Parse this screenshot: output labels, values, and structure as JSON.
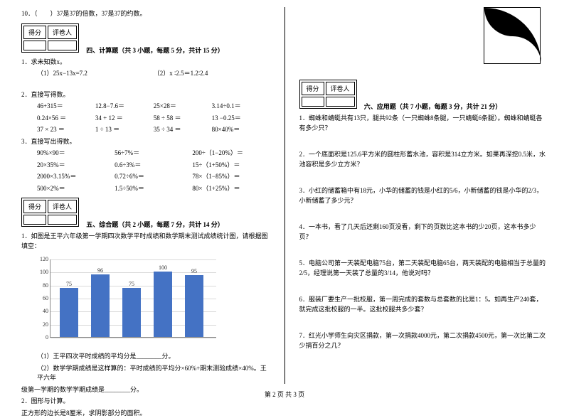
{
  "q10": "10．（　　）37是37的倍数，37是37的约数。",
  "scorebox": {
    "c1": "得分",
    "c2": "评卷人"
  },
  "sec4": {
    "title": "四、计算题（共 3 小题，每题 5 分，共计 15 分）",
    "q1": "1．求未知数x。",
    "q1a": "（1）25x−13x=7.2",
    "q1b": "（2）x ∶2.5＝1.2∶2.4",
    "q2": "2．直接写得数。",
    "r1": [
      "46+315＝",
      "12.8−7.6＝",
      "25×28＝",
      "3.14÷0.1＝"
    ],
    "r2": [
      "0.24×56  ＝",
      "34 + 12  ＝",
      "58 ÷ 58  ＝",
      "13 −0.25＝"
    ],
    "r3": [
      "37 × 23  ＝",
      "1 ÷ 13   ＝",
      "35 ÷ 34  ＝",
      "80×40%＝"
    ],
    "q3": "3．直接写出得数。",
    "s1": [
      "90%×90＝",
      "56÷7%＝",
      "200÷（1−20%）＝"
    ],
    "s2": [
      "20×35%＝",
      "0.6÷3%＝",
      "15÷（1+50%）＝"
    ],
    "s3": [
      "2000×3.15%＝",
      "0.72÷6%＝",
      "78×（1−85%）＝"
    ],
    "s4": [
      "500×2%＝",
      "1.5÷50%＝",
      "80×（1+25%）＝"
    ]
  },
  "sec5": {
    "title": "五、综合题（共 2 小题，每题 7 分，共计 14 分）",
    "q1": "1．如图是王平六年级第一学期四次数学平时成绩和数学期末测试成绩统计图，请根据图填空：",
    "chart": {
      "type": "bar",
      "categories": [
        "",
        "",
        "",
        "",
        ""
      ],
      "values": [
        75,
        96,
        75,
        100,
        95
      ],
      "labels": [
        "75",
        "96",
        "75",
        "100",
        "95"
      ],
      "yticks": [
        0,
        20,
        40,
        60,
        80,
        100,
        120
      ],
      "bar_color": "#4472c4",
      "grid_color": "#d9d9d9",
      "ymax": 120
    },
    "q1a": "（1）王平四次平时成绩的平均分是________分。",
    "q1b": "（2）数学学期成绩是这样算的：平时成绩的平均分×60%+期末测验成绩×40%。王平六年",
    "q1c": "级第一学期的数学学期成绩是________分。",
    "q2": "2．图形与计算。",
    "q2a": "    正方形的边长是8厘米，求阴影部分的面积。"
  },
  "sec6": {
    "title": "六、应用题（共 7 小题，每题 3 分，共计 21 分）",
    "q1": "1．蜘蛛和蜻蜓共有13只，腿共92条（一只蜘蛛8条腿，一只蜻蜓6条腿）。蜘蛛和蜻蜓各有多少只？",
    "q2": "2．一个底面积是125.6平方米的圆柱形蓄水池，容积是314立方米。如果再深挖0.5米，水池容积是多少立方米？",
    "q3": "3．小红的储蓄箱中有18元，小华的储蓄的钱是小红的5/6，小新储蓄的钱是小华的2/3，小新储蓄了多少元？",
    "q4": "4．一本书，看了几天后还剩160页没看，剩下的页数比这本书的少20页，这本书多少页？",
    "q5": "5．电脑公司第一天装配电脑75台，第二天装配电脑65台，两天装配的电脑相当于总量的2/5，经理说第一天装了总量的3/14，他说对吗？",
    "q6": "6．服装厂要生产一批校服，第一周完成的套数与总套数的比是1：5。如再生产240套，就完成这批校服的一半。这批校服共多少套？",
    "q7": "7．红光小学师生向灾区捐款，第一次捐款4000元，第二次捐款4500元，第一次比第二次少捐百分之几？"
  },
  "footer": "第 2 页 共 3 页"
}
